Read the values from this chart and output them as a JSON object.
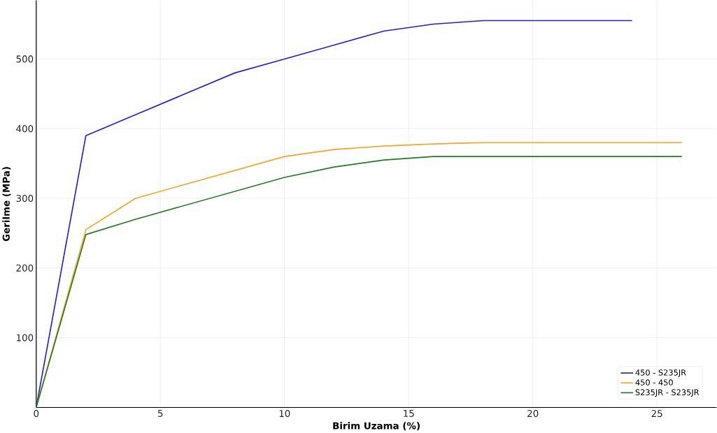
{
  "chart_data": {
    "type": "line",
    "xlabel": "Birim Uzama (%)",
    "ylabel": "Gerilme (MPa)",
    "xlim": [
      0,
      27.4
    ],
    "ylim": [
      0,
      584
    ],
    "xticks": [
      0,
      5,
      10,
      15,
      20,
      25
    ],
    "yticks": [
      100,
      200,
      300,
      400,
      500
    ],
    "grid": true,
    "legend": "bottom right",
    "marker": "none",
    "line_style": "solid",
    "series": [
      {
        "name": "450 - S235JR",
        "color": "#1f1fe6",
        "x": [
          0,
          2,
          4,
          6,
          8,
          10,
          12,
          14,
          16,
          18,
          24
        ],
        "values": [
          0,
          390,
          420,
          450,
          480,
          500,
          520,
          540,
          550,
          555,
          555
        ]
      },
      {
        "name": "450 - 450",
        "color": "#f5a623",
        "x": [
          0,
          2,
          4,
          6,
          8,
          10,
          12,
          14,
          16,
          18,
          26
        ],
        "values": [
          0,
          255,
          300,
          320,
          340,
          360,
          370,
          375,
          378,
          380,
          380
        ]
      },
      {
        "name": "S235JR - S235JR",
        "color": "#1e7d1e",
        "x": [
          0,
          2,
          4,
          6,
          8,
          10,
          12,
          14,
          16,
          26
        ],
        "values": [
          0,
          248,
          270,
          290,
          310,
          330,
          345,
          355,
          360,
          360
        ]
      }
    ]
  }
}
